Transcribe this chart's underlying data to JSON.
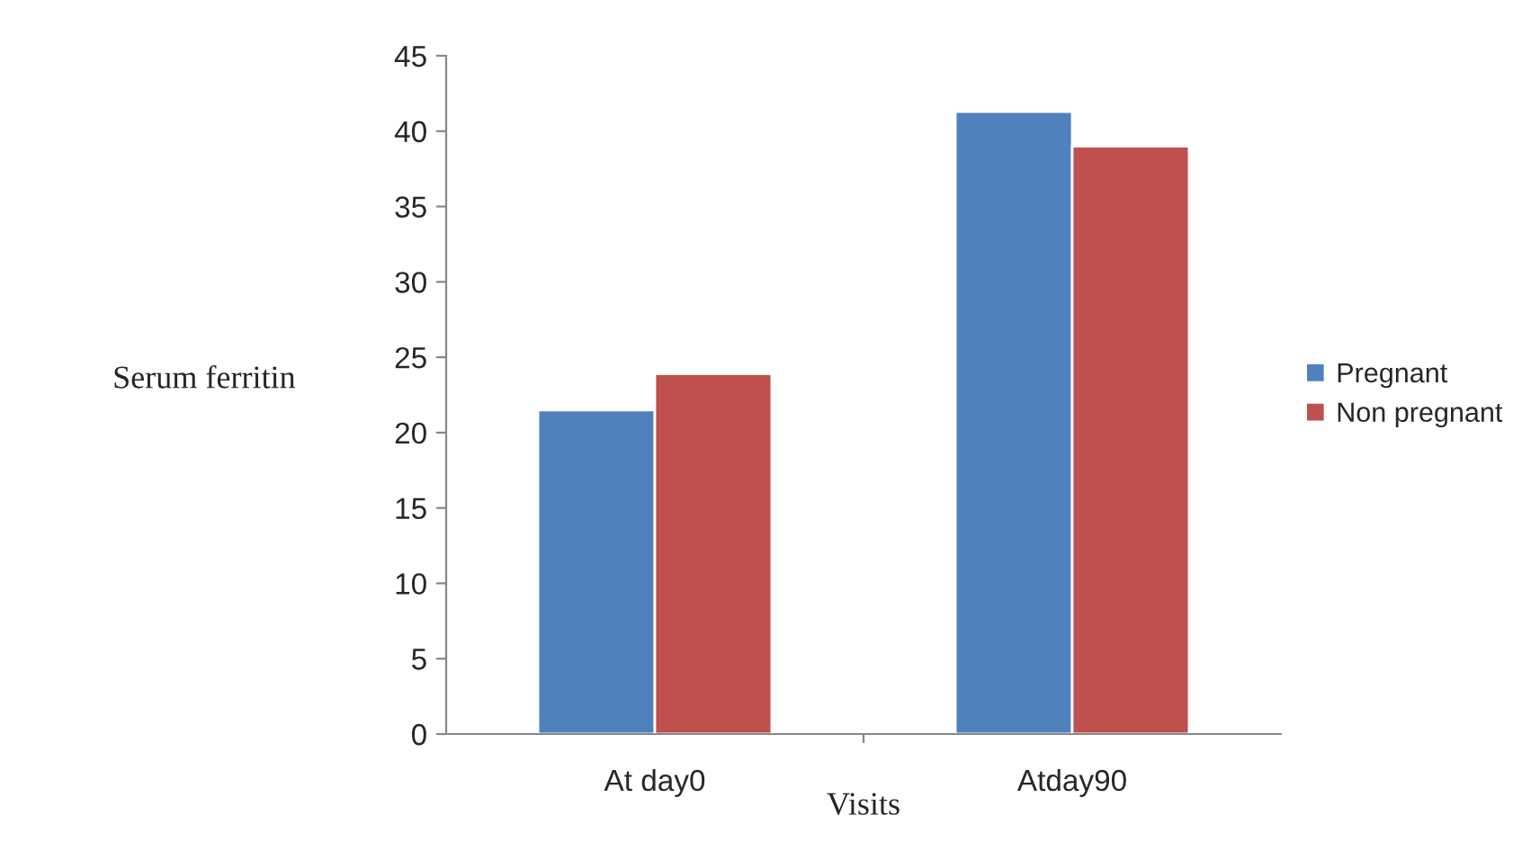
{
  "chart_data": {
    "type": "bar",
    "xlabel": "Visits",
    "ylabel": "Serum ferritin",
    "categories": [
      "At day0",
      "Atday90"
    ],
    "series": [
      {
        "name": "Pregnant",
        "color": "#4f81bd",
        "values": [
          21.5,
          41.3
        ]
      },
      {
        "name": "Non pregnant",
        "color": "#c0504d",
        "values": [
          23.9,
          39.0
        ]
      }
    ],
    "ylim": [
      0,
      45
    ],
    "yticks": [
      0,
      5,
      10,
      15,
      20,
      25,
      30,
      35,
      40,
      45
    ],
    "grid": false,
    "legend": "right"
  }
}
